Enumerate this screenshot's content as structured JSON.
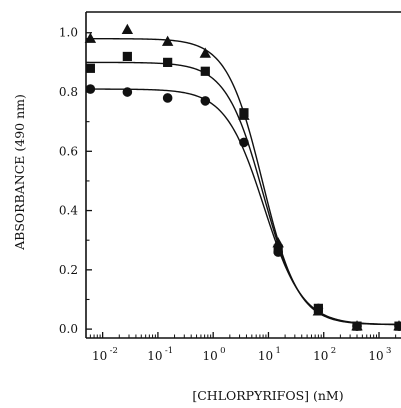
{
  "chart_data": {
    "type": "scatter",
    "xlabel": "[CHLORPYRIFOS] (nM)",
    "ylabel": "ABSORBANCE (490 nm)",
    "x_scale": "log",
    "xlim": [
      0.005,
      2500
    ],
    "ylim": [
      -0.03,
      1.07
    ],
    "x_ticks": [
      0.01,
      0.1,
      1,
      10,
      100,
      1000
    ],
    "x_tick_labels": [
      {
        "base": "10",
        "exp": "-2"
      },
      {
        "base": "10",
        "exp": "-1"
      },
      {
        "base": "10",
        "exp": "0"
      },
      {
        "base": "10",
        "exp": "1"
      },
      {
        "base": "10",
        "exp": "2"
      },
      {
        "base": "10",
        "exp": "3"
      }
    ],
    "y_ticks": [
      0.0,
      0.2,
      0.4,
      0.6,
      0.8,
      1.0
    ],
    "y_tick_labels": [
      "0.0",
      "0.2",
      "0.4",
      "0.6",
      "0.8",
      "1.0"
    ],
    "grid": false,
    "colors": {
      "marks": "#111111",
      "axes": "#111111",
      "background": "#ffffff"
    },
    "series": [
      {
        "marker": "triangle",
        "x": [
          0.006,
          0.028,
          0.15,
          0.72,
          3.6,
          15,
          80,
          400,
          2300
        ],
        "y": [
          0.98,
          1.01,
          0.97,
          0.93,
          0.72,
          0.29,
          0.06,
          0.01,
          0.01
        ],
        "fit": {
          "top": 0.98,
          "bottom": 0.015,
          "ec50": 7.8,
          "hill": 1.35
        }
      },
      {
        "marker": "square",
        "x": [
          0.006,
          0.028,
          0.15,
          0.72,
          3.6,
          15,
          80,
          400,
          2300
        ],
        "y": [
          0.88,
          0.92,
          0.9,
          0.87,
          0.73,
          0.27,
          0.07,
          0.01,
          0.01
        ],
        "fit": {
          "top": 0.9,
          "bottom": 0.015,
          "ec50": 8.0,
          "hill": 1.3
        }
      },
      {
        "marker": "circle",
        "x": [
          0.006,
          0.028,
          0.15,
          0.72,
          3.6,
          15,
          80,
          400,
          2300
        ],
        "y": [
          0.81,
          0.8,
          0.78,
          0.77,
          0.63,
          0.26,
          0.07,
          0.01,
          0.01
        ],
        "fit": {
          "top": 0.81,
          "bottom": 0.015,
          "ec50": 8.3,
          "hill": 1.25
        }
      }
    ]
  }
}
